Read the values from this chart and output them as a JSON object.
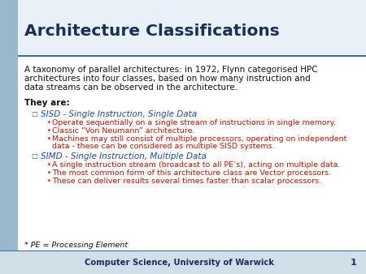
{
  "title": "Architecture Classifications",
  "title_color": "#1a2e5a",
  "title_fontsize": 14.5,
  "outer_bg": "#b8cfe0",
  "content_bg": "#ffffff",
  "header_bg": "#e8f0f8",
  "header_line_color": "#3a6aaa",
  "footer_text": "Computer Science, University of Warwick",
  "footer_color": "#1a2e5a",
  "page_number": "1",
  "intro_text_line1": "A taxonomy of parallel architectures: in 1972, Flynn categorised HPC",
  "intro_text_line2": "architectures into four classes, based on how many instruction and",
  "intro_text_line3": "data streams can be observed in the architecture.",
  "intro_color": "#111111",
  "they_are": "They are:",
  "they_are_color": "#111111",
  "bullet1_header": "SISD - Single Instruction, Single Data",
  "bullet1_color": "#1a4aaa",
  "bullet1_items": [
    "Operate sequentially on a single stream of instructions in single memory.",
    "Classic “Von Neumann” architecture.",
    "Machines may still consist of multiple processors, operating on independent",
    "data - these can be considered as multiple SISD systems."
  ],
  "bullet1_item_wrap": [
    false,
    false,
    true,
    false
  ],
  "bullet1_items_color": "#cc1100",
  "bullet2_header": "SIMD - Single Instruction, Multiple Data",
  "bullet2_color": "#1a4aaa",
  "bullet2_items": [
    "A single instruction stream (broadcast to all PE’s), acting on multiple data.",
    "The most common form of this architecture class are Vector processors.",
    "These can deliver results several times faster than scalar processors."
  ],
  "bullet2_items_color": "#cc1100",
  "footnote": "* PE = Processing Element",
  "footnote_color": "#111111",
  "left_strip_color": "#9ab8cc",
  "footer_line_color": "#3a6aaa",
  "footer_bg": "#d0dfe8"
}
